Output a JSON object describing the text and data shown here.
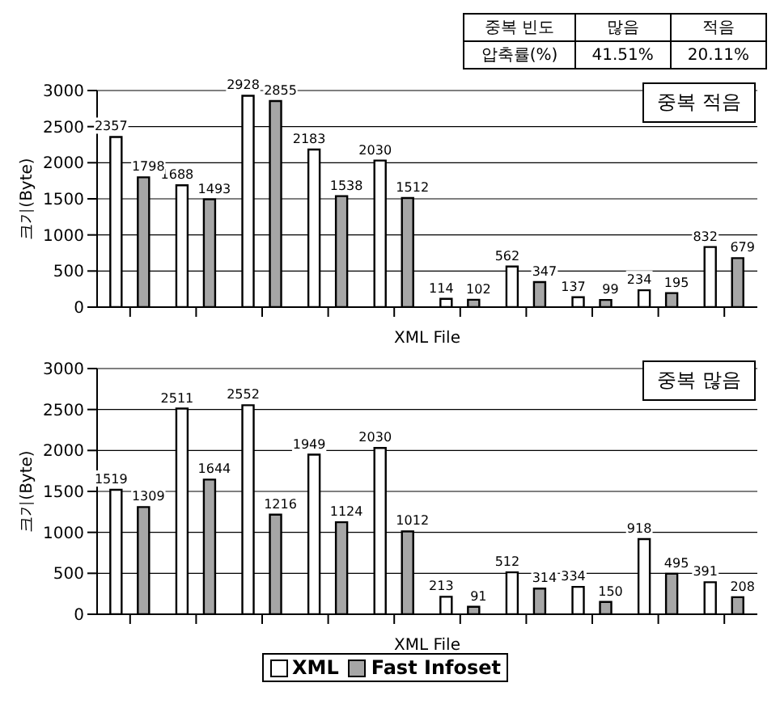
{
  "chart_data": [
    {
      "type": "bar",
      "title": "중복 적음",
      "xlabel": "XML File",
      "ylabel": "크기(Byte)",
      "annotations": [
        "중복 빈도",
        "많음",
        "적음",
        "압축률(%)",
        "41.51%",
        "20.11%"
      ],
      "categories": [
        null,
        null,
        null,
        null,
        null,
        null,
        null,
        null,
        null,
        null
      ],
      "series": [
        {
          "color": "#ffffff",
          "values": [
            2357,
            1688,
            2928,
            2183,
            2030,
            114,
            562,
            137,
            234,
            832
          ]
        },
        {
          "color": "#a6a6a6",
          "values": [
            1798,
            1493,
            2855,
            1538,
            1512,
            102,
            347,
            99,
            195,
            679
          ]
        }
      ],
      "ylim": [
        0,
        3000
      ],
      "yticks": [
        0,
        500,
        1000,
        1500,
        2000,
        2500,
        3000
      ],
      "grid": "y",
      "data_labels": true
    },
    {
      "type": "bar",
      "title": "중복 많음",
      "xlabel": "XML File",
      "ylabel": "크기(Byte)",
      "categories": [
        null,
        null,
        null,
        null,
        null,
        null,
        null,
        null,
        null,
        null
      ],
      "series": [
        {
          "name": "XML",
          "color": "#ffffff",
          "values": [
            1519,
            2511,
            2552,
            1949,
            2030,
            213,
            512,
            334,
            918,
            391
          ]
        },
        {
          "name": "Fast Infoset",
          "color": "#a6a6a6",
          "values": [
            1309,
            1644,
            1216,
            1124,
            1012,
            91,
            314,
            150,
            495,
            208
          ]
        }
      ],
      "ylim": [
        0,
        3000
      ],
      "yticks": [
        0,
        500,
        1000,
        1500,
        2000,
        2500,
        3000
      ],
      "grid": "y",
      "data_labels": true,
      "legend": "bottom"
    }
  ]
}
